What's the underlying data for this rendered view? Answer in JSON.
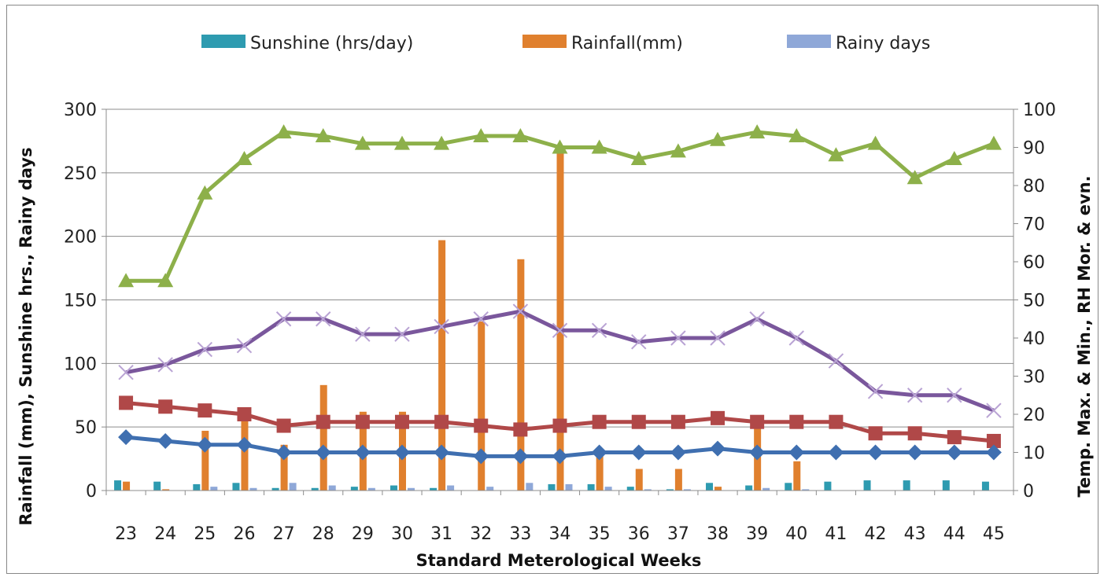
{
  "chart_data": {
    "type": "bar",
    "title": "",
    "xlabel": "Standard Meterological Weeks",
    "ylabel_left": "Rainfall (mm), Sunshine hrs., Rainy days",
    "ylabel_right": "Temp. Max. & Min., RH Mor. & evn.",
    "ylim_left": [
      0,
      300
    ],
    "ylim_right": [
      0,
      100
    ],
    "yticks_left": [
      "0",
      "50",
      "100",
      "150",
      "200",
      "250",
      "300"
    ],
    "yticks_right": [
      "0",
      "10",
      "20",
      "30",
      "40",
      "50",
      "60",
      "70",
      "80",
      "90",
      "100"
    ],
    "grid": true,
    "legend_position": "top",
    "categories": [
      "23",
      "24",
      "25",
      "26",
      "27",
      "28",
      "29",
      "30",
      "31",
      "32",
      "33",
      "34",
      "35",
      "36",
      "37",
      "38",
      "39",
      "40",
      "41",
      "42",
      "43",
      "44",
      "45"
    ],
    "bar_series": [
      {
        "name": "Sunshine (hrs/day)",
        "color": "#2e9bb0",
        "values": [
          8,
          7,
          5,
          6,
          2,
          2,
          3,
          4,
          2,
          0,
          0,
          5,
          5,
          3,
          1,
          6,
          4,
          6,
          7,
          8,
          8,
          8,
          7
        ]
      },
      {
        "name": "Rainfall(mm)",
        "color": "#e0802e",
        "values": [
          7,
          1,
          47,
          60,
          36,
          83,
          62,
          62,
          197,
          133,
          182,
          270,
          30,
          17,
          17,
          3,
          52,
          23,
          0,
          0,
          0,
          0,
          0
        ]
      },
      {
        "name": "Rainy days",
        "color": "#8fa8d8",
        "values": [
          0,
          0,
          3,
          2,
          6,
          4,
          2,
          2,
          4,
          3,
          6,
          5,
          3,
          1,
          1,
          0,
          2,
          1,
          0,
          0,
          0,
          0,
          0
        ]
      }
    ],
    "line_series": [
      {
        "color": "#8db04a",
        "marker": "triangle",
        "values": [
          55,
          55,
          78,
          87,
          94,
          93,
          91,
          91,
          91,
          93,
          93,
          90,
          90,
          87,
          89,
          92,
          94,
          93,
          88,
          91,
          82,
          87,
          91
        ]
      },
      {
        "color": "#7a579c",
        "marker": "x",
        "values": [
          31,
          33,
          37,
          38,
          45,
          45,
          41,
          41,
          43,
          45,
          47,
          42,
          42,
          39,
          40,
          40,
          45,
          40,
          34,
          26,
          25,
          25,
          21
        ]
      },
      {
        "color": "#b04848",
        "marker": "square",
        "values": [
          23,
          22,
          21,
          20,
          17,
          18,
          18,
          18,
          18,
          17,
          16,
          17,
          18,
          18,
          18,
          19,
          18,
          18,
          18,
          15,
          15,
          14,
          13
        ]
      },
      {
        "color": "#3f6fb0",
        "marker": "diamond",
        "values": [
          14,
          13,
          12,
          12,
          10,
          10,
          10,
          10,
          10,
          9,
          9,
          9,
          10,
          10,
          10,
          11,
          10,
          10,
          10,
          10,
          10,
          10,
          10
        ]
      }
    ]
  }
}
